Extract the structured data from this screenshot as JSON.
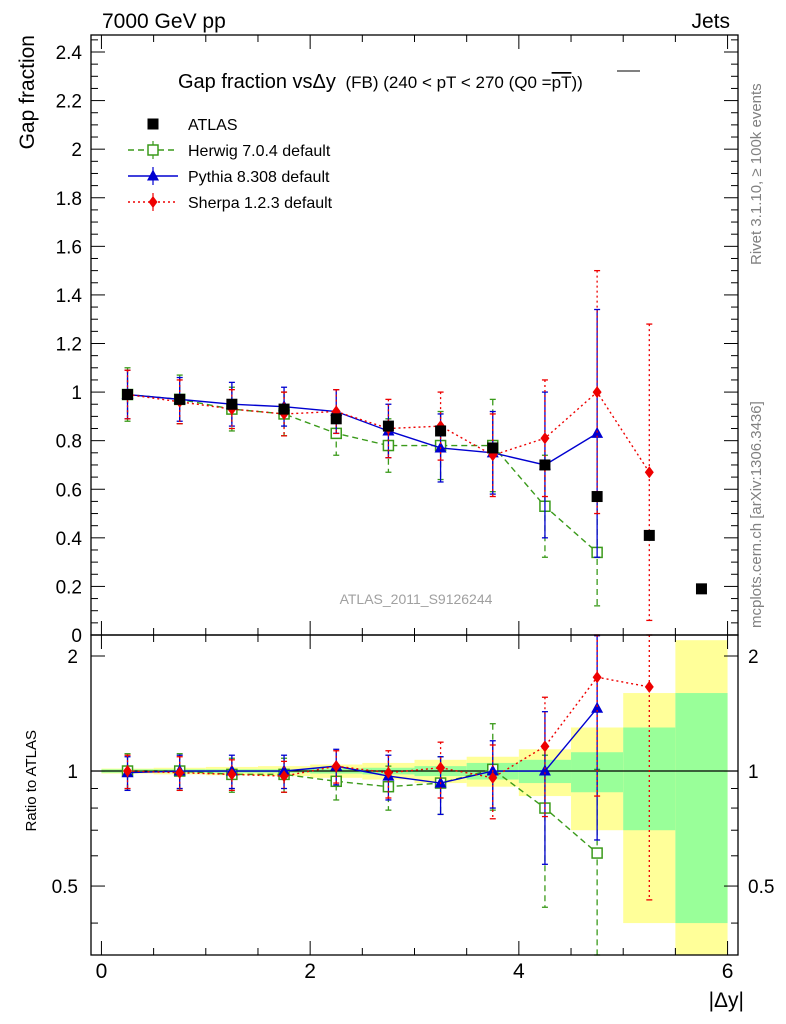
{
  "header": {
    "energy_label": "7000 GeV pp",
    "process_label": "Jets",
    "side_rivet": "Rivet 3.1.10, ≥ 100k events",
    "side_url": "mcplots.cern.ch [arXiv:1306.3436]",
    "watermark": "ATLAS_2011_S9126244"
  },
  "chart_data": {
    "type": "scatter",
    "title": "Gap fraction vsΔy",
    "title_suffix": "(FB) (240 < pT < 270 (Q0 =pT))",
    "title_suffix_plain": "(FB) (240 < pT < 270 (Q0 =",
    "title_pt": "pT",
    "title_close": "))",
    "xlabel": "|Δy|",
    "ylabel": "Gap fraction",
    "ratio_ylabel": "Ratio to ATLAS",
    "xlim": [
      -0.1,
      6.1
    ],
    "ylim": [
      0,
      2.47
    ],
    "ratio_ylim": [
      0.33,
      2.27
    ],
    "x_ticks": [
      "0",
      "2",
      "4",
      "6"
    ],
    "y_ticks": [
      "0",
      "0.2",
      "0.4",
      "0.6",
      "0.8",
      "1",
      "1.2",
      "1.4",
      "1.6",
      "1.8",
      "2",
      "2.2",
      "2.4"
    ],
    "ratio_ticks": [
      "0.5",
      "1",
      "2"
    ],
    "legend": [
      {
        "name": "ATLAS",
        "color": "#000000",
        "marker": "square-filled",
        "dash": ""
      },
      {
        "name": "Herwig 7.0.4 default",
        "color": "#3a9a1a",
        "marker": "square-open",
        "dash": "6,4"
      },
      {
        "name": "Pythia 8.308 default",
        "color": "#0000d0",
        "marker": "triangle",
        "dash": ""
      },
      {
        "name": "Sherpa 1.2.3 default",
        "color": "#ee0000",
        "marker": "diamond",
        "dash": "2,3"
      }
    ],
    "x": [
      0.25,
      0.75,
      1.25,
      1.75,
      2.25,
      2.75,
      3.25,
      3.75,
      4.25,
      4.75,
      5.25,
      5.75
    ],
    "data": {
      "name": "ATLAS",
      "values": [
        0.99,
        0.97,
        0.95,
        0.93,
        0.89,
        0.86,
        0.84,
        0.77,
        0.7,
        0.57,
        0.41,
        0.19
      ],
      "band_stat": [
        0.01,
        0.01,
        0.01,
        0.01,
        0.015,
        0.02,
        0.03,
        0.05,
        0.07,
        0.12,
        0.3,
        0.6
      ],
      "band_total": [
        0.015,
        0.02,
        0.025,
        0.03,
        0.04,
        0.05,
        0.07,
        0.09,
        0.14,
        0.3,
        0.6,
        1.2
      ]
    },
    "series": [
      {
        "name": "Herwig 7.0.4 default",
        "values": [
          0.99,
          0.97,
          0.93,
          0.91,
          0.83,
          0.78,
          0.78,
          0.78,
          0.53,
          0.34
        ],
        "err": [
          0.11,
          0.1,
          0.09,
          0.09,
          0.09,
          0.11,
          0.14,
          0.19,
          0.21,
          0.22
        ]
      },
      {
        "name": "Pythia 8.308 default",
        "values": [
          0.99,
          0.97,
          0.95,
          0.94,
          0.92,
          0.84,
          0.77,
          0.75,
          0.7,
          0.83
        ],
        "err": [
          0.1,
          0.09,
          0.09,
          0.08,
          0.09,
          0.11,
          0.14,
          0.17,
          0.3,
          0.51
        ]
      },
      {
        "name": "Sherpa 1.2.3 default",
        "values": [
          0.99,
          0.96,
          0.93,
          0.91,
          0.92,
          0.85,
          0.86,
          0.74,
          0.81,
          1.0,
          0.67
        ],
        "err": [
          0.1,
          0.09,
          0.08,
          0.09,
          0.09,
          0.12,
          0.14,
          0.17,
          0.24,
          0.5,
          0.61
        ]
      }
    ],
    "ratio_series": [
      {
        "name": "Herwig 7.0.4 default",
        "values": [
          1.0,
          1.0,
          0.98,
          0.98,
          0.94,
          0.91,
          0.93,
          1.01,
          0.8,
          0.61
        ],
        "err_hi": [
          0.11,
          0.11,
          0.1,
          0.1,
          0.1,
          0.12,
          0.16,
          0.32,
          0.3,
          0.4
        ],
        "err_lo": [
          0.11,
          0.11,
          0.1,
          0.1,
          0.1,
          0.12,
          0.16,
          0.22,
          0.36,
          0.4
        ]
      },
      {
        "name": "Pythia 8.308 default",
        "values": [
          0.99,
          1.0,
          1.0,
          1.0,
          1.03,
          0.97,
          0.93,
          1.0,
          1.0,
          1.46
        ],
        "err_hi": [
          0.1,
          0.1,
          0.1,
          0.1,
          0.11,
          0.13,
          0.16,
          0.2,
          0.43,
          0.8
        ],
        "err_lo": [
          0.1,
          0.1,
          0.1,
          0.1,
          0.11,
          0.13,
          0.16,
          0.2,
          0.43,
          0.8
        ]
      },
      {
        "name": "Sherpa 1.2.3 default",
        "values": [
          1.0,
          0.99,
          0.98,
          0.97,
          1.03,
          0.99,
          1.02,
          0.96,
          1.16,
          1.76,
          1.66
        ],
        "err_hi": [
          0.1,
          0.1,
          0.09,
          0.09,
          0.1,
          0.14,
          0.17,
          0.21,
          0.4,
          0.9,
          1.2
        ],
        "err_lo": [
          0.1,
          0.1,
          0.09,
          0.09,
          0.1,
          0.14,
          0.17,
          0.21,
          0.4,
          0.9,
          1.2
        ]
      }
    ]
  }
}
